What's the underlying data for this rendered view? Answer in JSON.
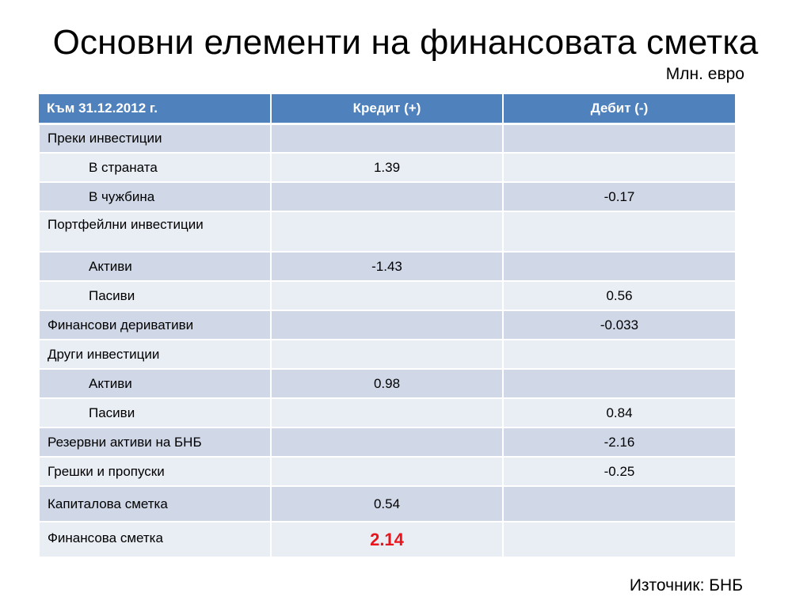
{
  "slide": {
    "title": "Основни елементи на финансовата сметка",
    "unit_label": "Млн. евро",
    "source": "Източник: БНБ"
  },
  "table": {
    "headers": [
      "Към 31.12.2012 г.",
      "Кредит (+)",
      "Дебит (-)"
    ],
    "rows": [
      {
        "label": "Преки инвестиции",
        "credit": "",
        "debit": ""
      },
      {
        "label": "В страната",
        "credit": "1.39",
        "debit": ""
      },
      {
        "label": "В чужбина",
        "credit": "",
        "debit": "-0.17"
      },
      {
        "label": "Портфейлни инвестиции",
        "credit": "",
        "debit": ""
      },
      {
        "label": "Активи",
        "credit": "-1.43",
        "debit": ""
      },
      {
        "label": "Пасиви",
        "credit": "",
        "debit": "0.56"
      },
      {
        "label": "Финансови деривативи",
        "credit": "",
        "debit": "-0.033"
      },
      {
        "label": "Други инвестиции",
        "credit": "",
        "debit": ""
      },
      {
        "label": "Активи",
        "credit": "0.98",
        "debit": ""
      },
      {
        "label": "Пасиви",
        "credit": "",
        "debit": "0.84"
      },
      {
        "label": "Резервни активи на БНБ",
        "credit": "",
        "debit": "-2.16"
      },
      {
        "label": "Грешки и пропуски",
        "credit": "",
        "debit": "-0.25"
      },
      {
        "label": "Капиталова сметка",
        "credit": "0.54",
        "debit": ""
      },
      {
        "label": "Финансова сметка",
        "credit": "2.14",
        "debit": ""
      }
    ],
    "highlight_color": "#e8151c",
    "header_color": "#4f81bd"
  }
}
